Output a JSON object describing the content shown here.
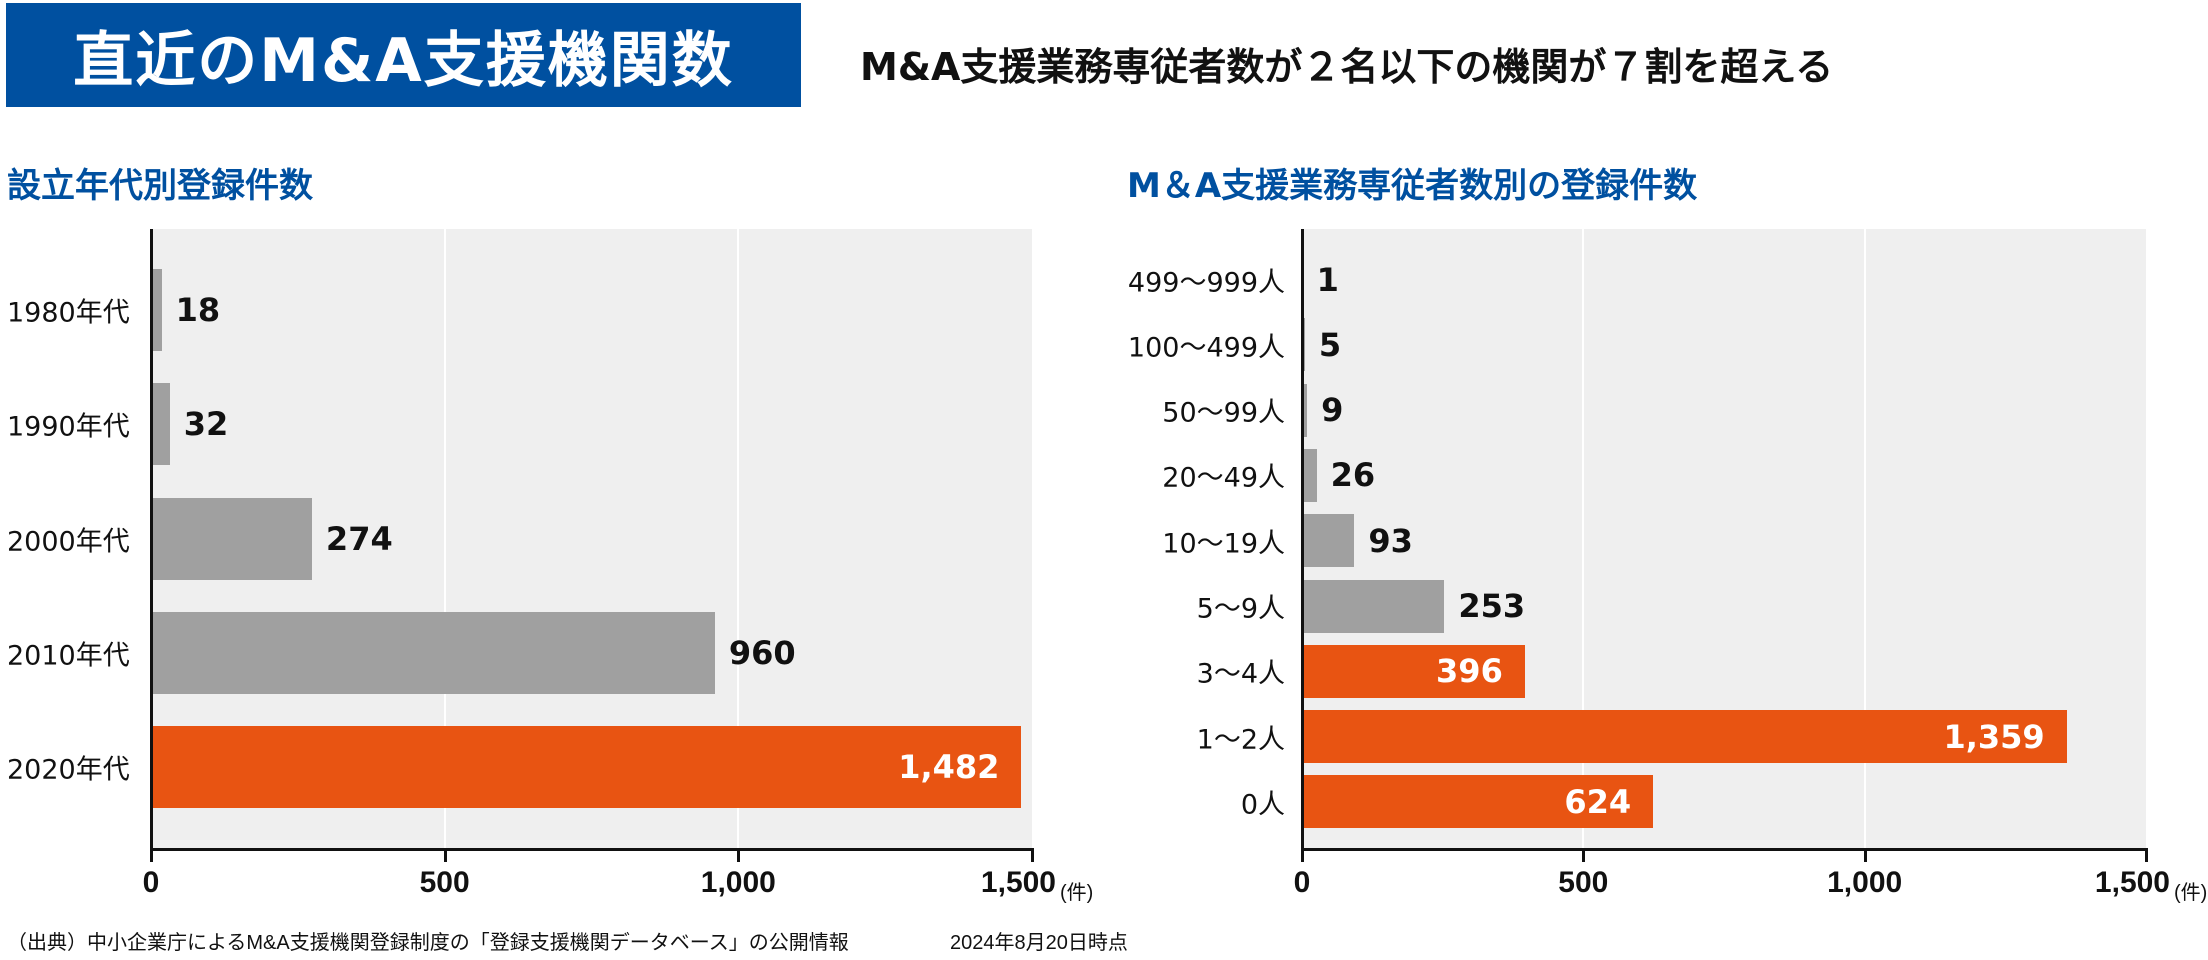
{
  "header": {
    "title": "直近のM&A支援機関数",
    "subtitle": "M&A支援業務専従者数が２名以下の機関が７割を超える"
  },
  "colors": {
    "title_bg": "#0050a0",
    "highlight": "#e85412",
    "normal": "#a0a0a0",
    "plot_bg": "#efefef"
  },
  "chart_data": [
    {
      "type": "bar",
      "orientation": "horizontal",
      "title": "設立年代別登録件数",
      "categories": [
        "1980年代",
        "1990年代",
        "2000年代",
        "2010年代",
        "2020年代"
      ],
      "values": [
        18,
        32,
        274,
        960,
        1482
      ],
      "value_labels": [
        "18",
        "32",
        "274",
        "960",
        "1,482"
      ],
      "highlighted": [
        false,
        false,
        false,
        false,
        true
      ],
      "xlim": [
        0,
        1500
      ],
      "ticks": [
        "0",
        "500",
        "1,000",
        "1,500"
      ],
      "tick_values": [
        0,
        500,
        1000,
        1500
      ],
      "unit": "(件)",
      "grid": true
    },
    {
      "type": "bar",
      "orientation": "horizontal",
      "title": "M＆A支援業務専従者数別の登録件数",
      "categories": [
        "499〜999人",
        "100〜499人",
        "50〜99人",
        "20〜49人",
        "10〜19人",
        "5〜9人",
        "3〜4人",
        "1〜2人",
        "0人"
      ],
      "values": [
        1,
        5,
        9,
        26,
        93,
        253,
        396,
        1359,
        624
      ],
      "value_labels": [
        "1",
        "5",
        "9",
        "26",
        "93",
        "253",
        "396",
        "1,359",
        "624"
      ],
      "highlighted": [
        false,
        false,
        false,
        false,
        false,
        false,
        true,
        true,
        true
      ],
      "xlim": [
        0,
        1500
      ],
      "ticks": [
        "0",
        "500",
        "1,000",
        "1,500"
      ],
      "tick_values": [
        0,
        500,
        1000,
        1500
      ],
      "unit": "(件)",
      "grid": true
    }
  ],
  "footer": {
    "source": "（出典）中小企業庁によるM&A支援機関登録制度の「登録支援機関データベース」の公開情報",
    "date": "2024年8月20日時点"
  }
}
